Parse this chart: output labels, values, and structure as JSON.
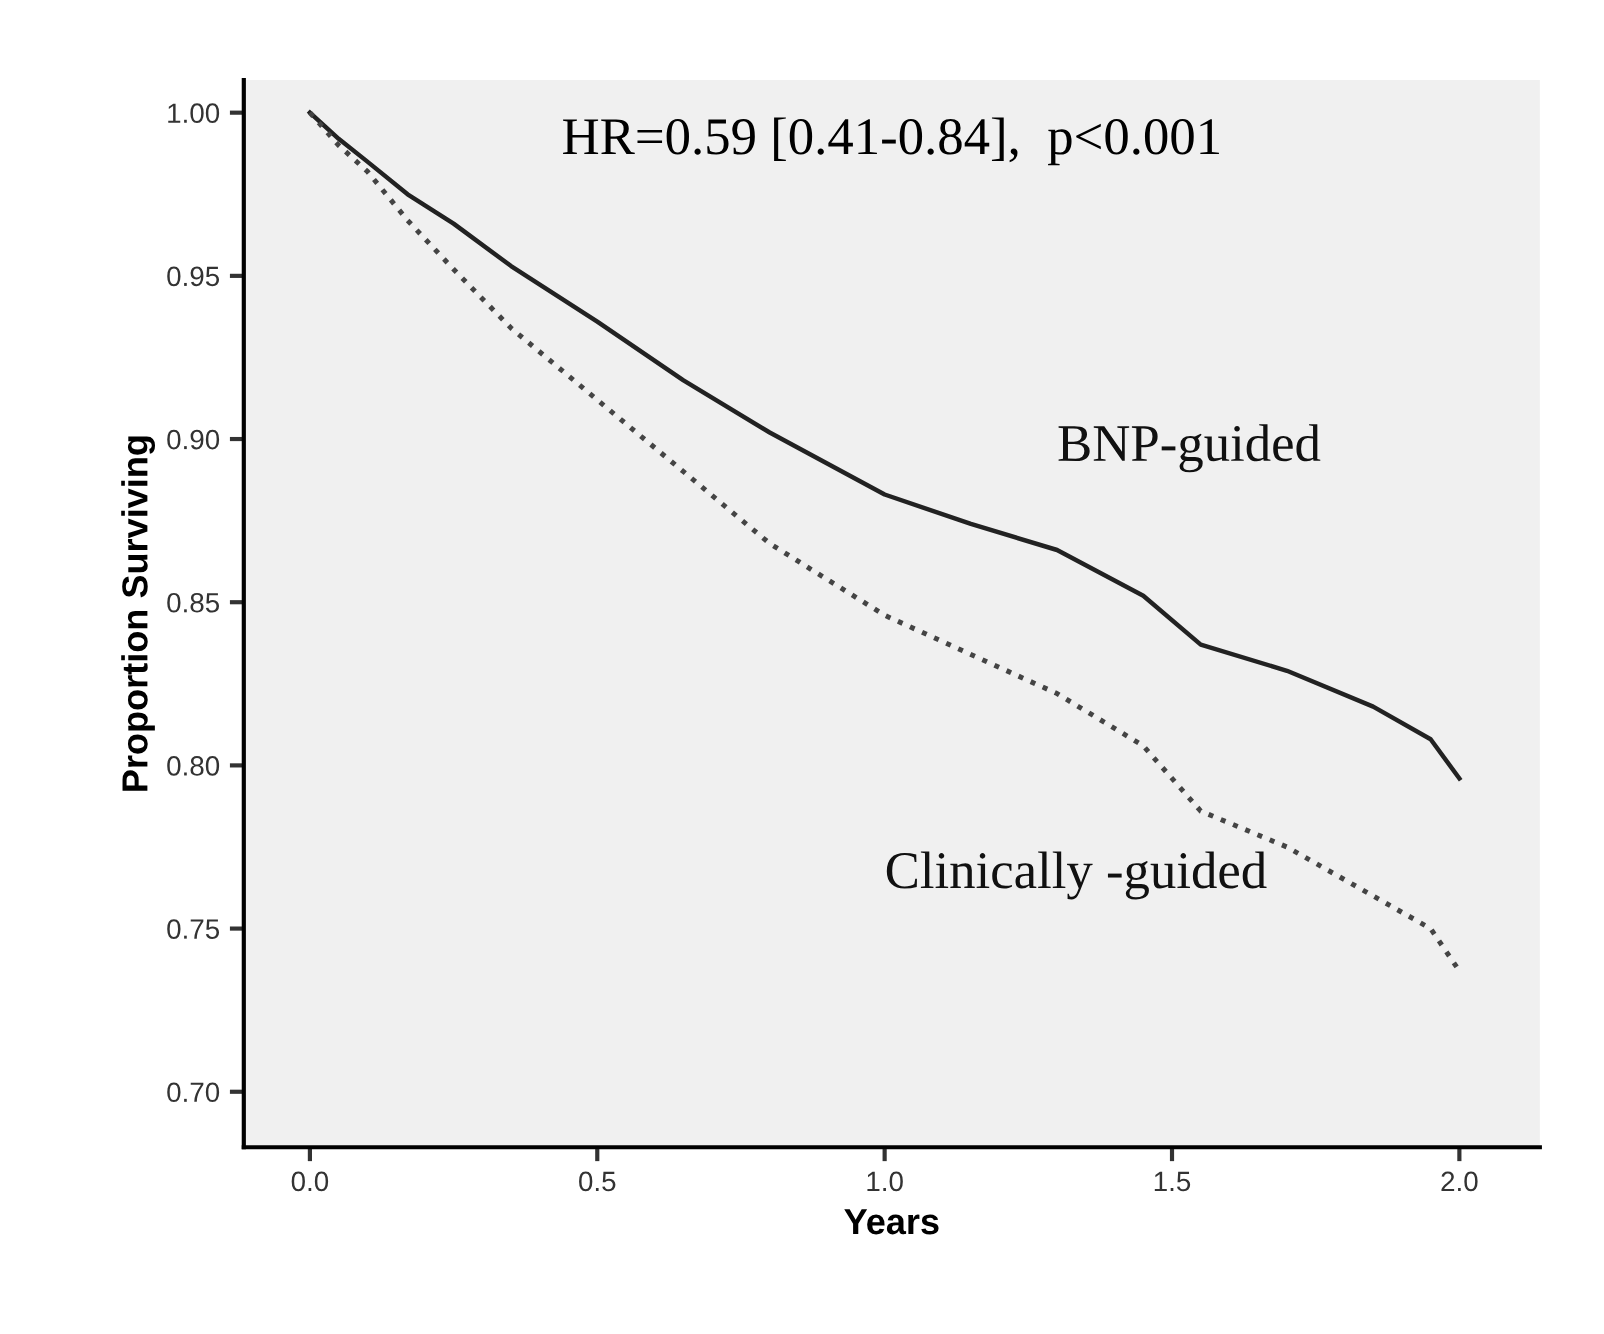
{
  "chart_data": {
    "type": "line",
    "xlabel": "Years",
    "ylabel": "Proportion Surviving",
    "annotations": [
      "HR=0.59 [0.41-0.84],  p<0.001"
    ],
    "x": [
      0,
      0.05,
      0.1,
      0.17,
      0.25,
      0.35,
      0.5,
      0.65,
      0.8,
      1.0,
      1.15,
      1.3,
      1.45,
      1.55,
      1.7,
      1.85,
      1.95,
      2.0
    ],
    "series": [
      {
        "name": "BNP-guided",
        "color": "#222222",
        "line_style": "solid",
        "values": [
          1.0,
          0.992,
          0.985,
          0.975,
          0.966,
          0.953,
          0.936,
          0.918,
          0.902,
          0.883,
          0.874,
          0.866,
          0.852,
          0.837,
          0.829,
          0.818,
          0.808,
          0.796
        ]
      },
      {
        "name": "Clinically -guided",
        "color": "#444444",
        "line_style": "dotted",
        "values": [
          1.0,
          0.99,
          0.982,
          0.967,
          0.952,
          0.934,
          0.912,
          0.89,
          0.868,
          0.846,
          0.834,
          0.822,
          0.806,
          0.786,
          0.775,
          0.76,
          0.75,
          0.737
        ]
      }
    ],
    "xlim": [
      -0.115,
      2.14
    ],
    "ylim": [
      0.683,
      1.01
    ],
    "xticks": [
      {
        "value": 0,
        "label": "0.0"
      },
      0.5,
      {
        "value": 1,
        "label": "1.0"
      },
      1.5,
      {
        "value": 2,
        "label": "2.0"
      }
    ],
    "yticks": [
      {
        "value": 0.7,
        "label": "0.70"
      },
      0.75,
      {
        "value": 0.8,
        "label": "0.80"
      },
      0.85,
      {
        "value": 0.9,
        "label": "0.90"
      },
      0.95,
      {
        "value": 1.0,
        "label": "1.00"
      }
    ],
    "grid": false,
    "legend": false
  }
}
